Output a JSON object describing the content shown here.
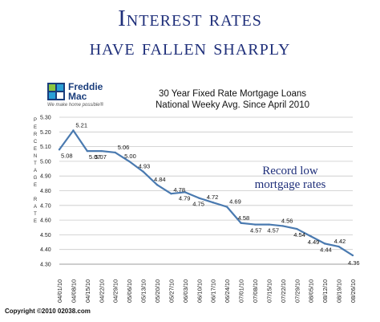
{
  "headline": {
    "line1": "Interest rates",
    "line2": "have fallen sharply"
  },
  "logo": {
    "name_line1": "Freddie",
    "name_line2": "Mac",
    "tagline": "We make home possible®",
    "colors": [
      "#8cc63f",
      "#1a3d7c",
      "#2a9fd6",
      "#ffffff"
    ]
  },
  "callout": {
    "line1": "Record low",
    "line2": "mortgage rates"
  },
  "copyright": "Copyright ©2010 02038.com",
  "colors": {
    "headline": "#1f2f7a",
    "line": "#4a7ab0",
    "grid": "#c8c8c8"
  },
  "chart_data": {
    "type": "line",
    "title": "30 Year Fixed Rate Mortgage Loans",
    "subtitle": "National Weeky Avg. Since April 2010",
    "ylabel": "PERCENTAGE RATE",
    "ylabel_lines": [
      "P",
      "E",
      "R",
      "C",
      "E",
      "N",
      "T",
      "A",
      "G",
      "E",
      "",
      "R",
      "A",
      "T",
      "E"
    ],
    "ylim": [
      4.3,
      5.3
    ],
    "yticks": [
      "4.30",
      "4.40",
      "4.50",
      "4.60",
      "4.70",
      "4.80",
      "4.90",
      "5.00",
      "5.10",
      "5.20",
      "5.30"
    ],
    "grid": true,
    "x": [
      "04/01/10",
      "04/08/10",
      "04/15/10",
      "04/22/10",
      "04/29/10",
      "05/06/10",
      "05/13/10",
      "05/20/10",
      "05/27/10",
      "06/03/10",
      "06/10/10",
      "06/17/10",
      "06/24/10",
      "07/01/10",
      "07/08/10",
      "07/15/10",
      "07/22/10",
      "07/29/10",
      "08/05/10",
      "08/12/10",
      "08/19/10",
      "08/26/10"
    ],
    "series": [
      {
        "values": [
          5.08,
          5.21,
          5.07,
          5.07,
          5.06,
          5.0,
          4.93,
          4.84,
          4.78,
          4.79,
          4.75,
          4.72,
          4.69,
          4.58,
          4.57,
          4.57,
          4.56,
          4.54,
          4.49,
          4.44,
          4.42,
          4.36
        ],
        "labels": [
          "5.08",
          "5.21",
          "5.07",
          "5.07",
          "5.06",
          "5.00",
          "4.93",
          "4.84",
          "4.78",
          "4.79",
          "4.75",
          "4.72",
          "4.69",
          "4.58",
          "4.57",
          "4.57",
          "4.56",
          "4.54",
          "4.49",
          "4.44",
          "4.42",
          "4.36"
        ]
      }
    ]
  }
}
